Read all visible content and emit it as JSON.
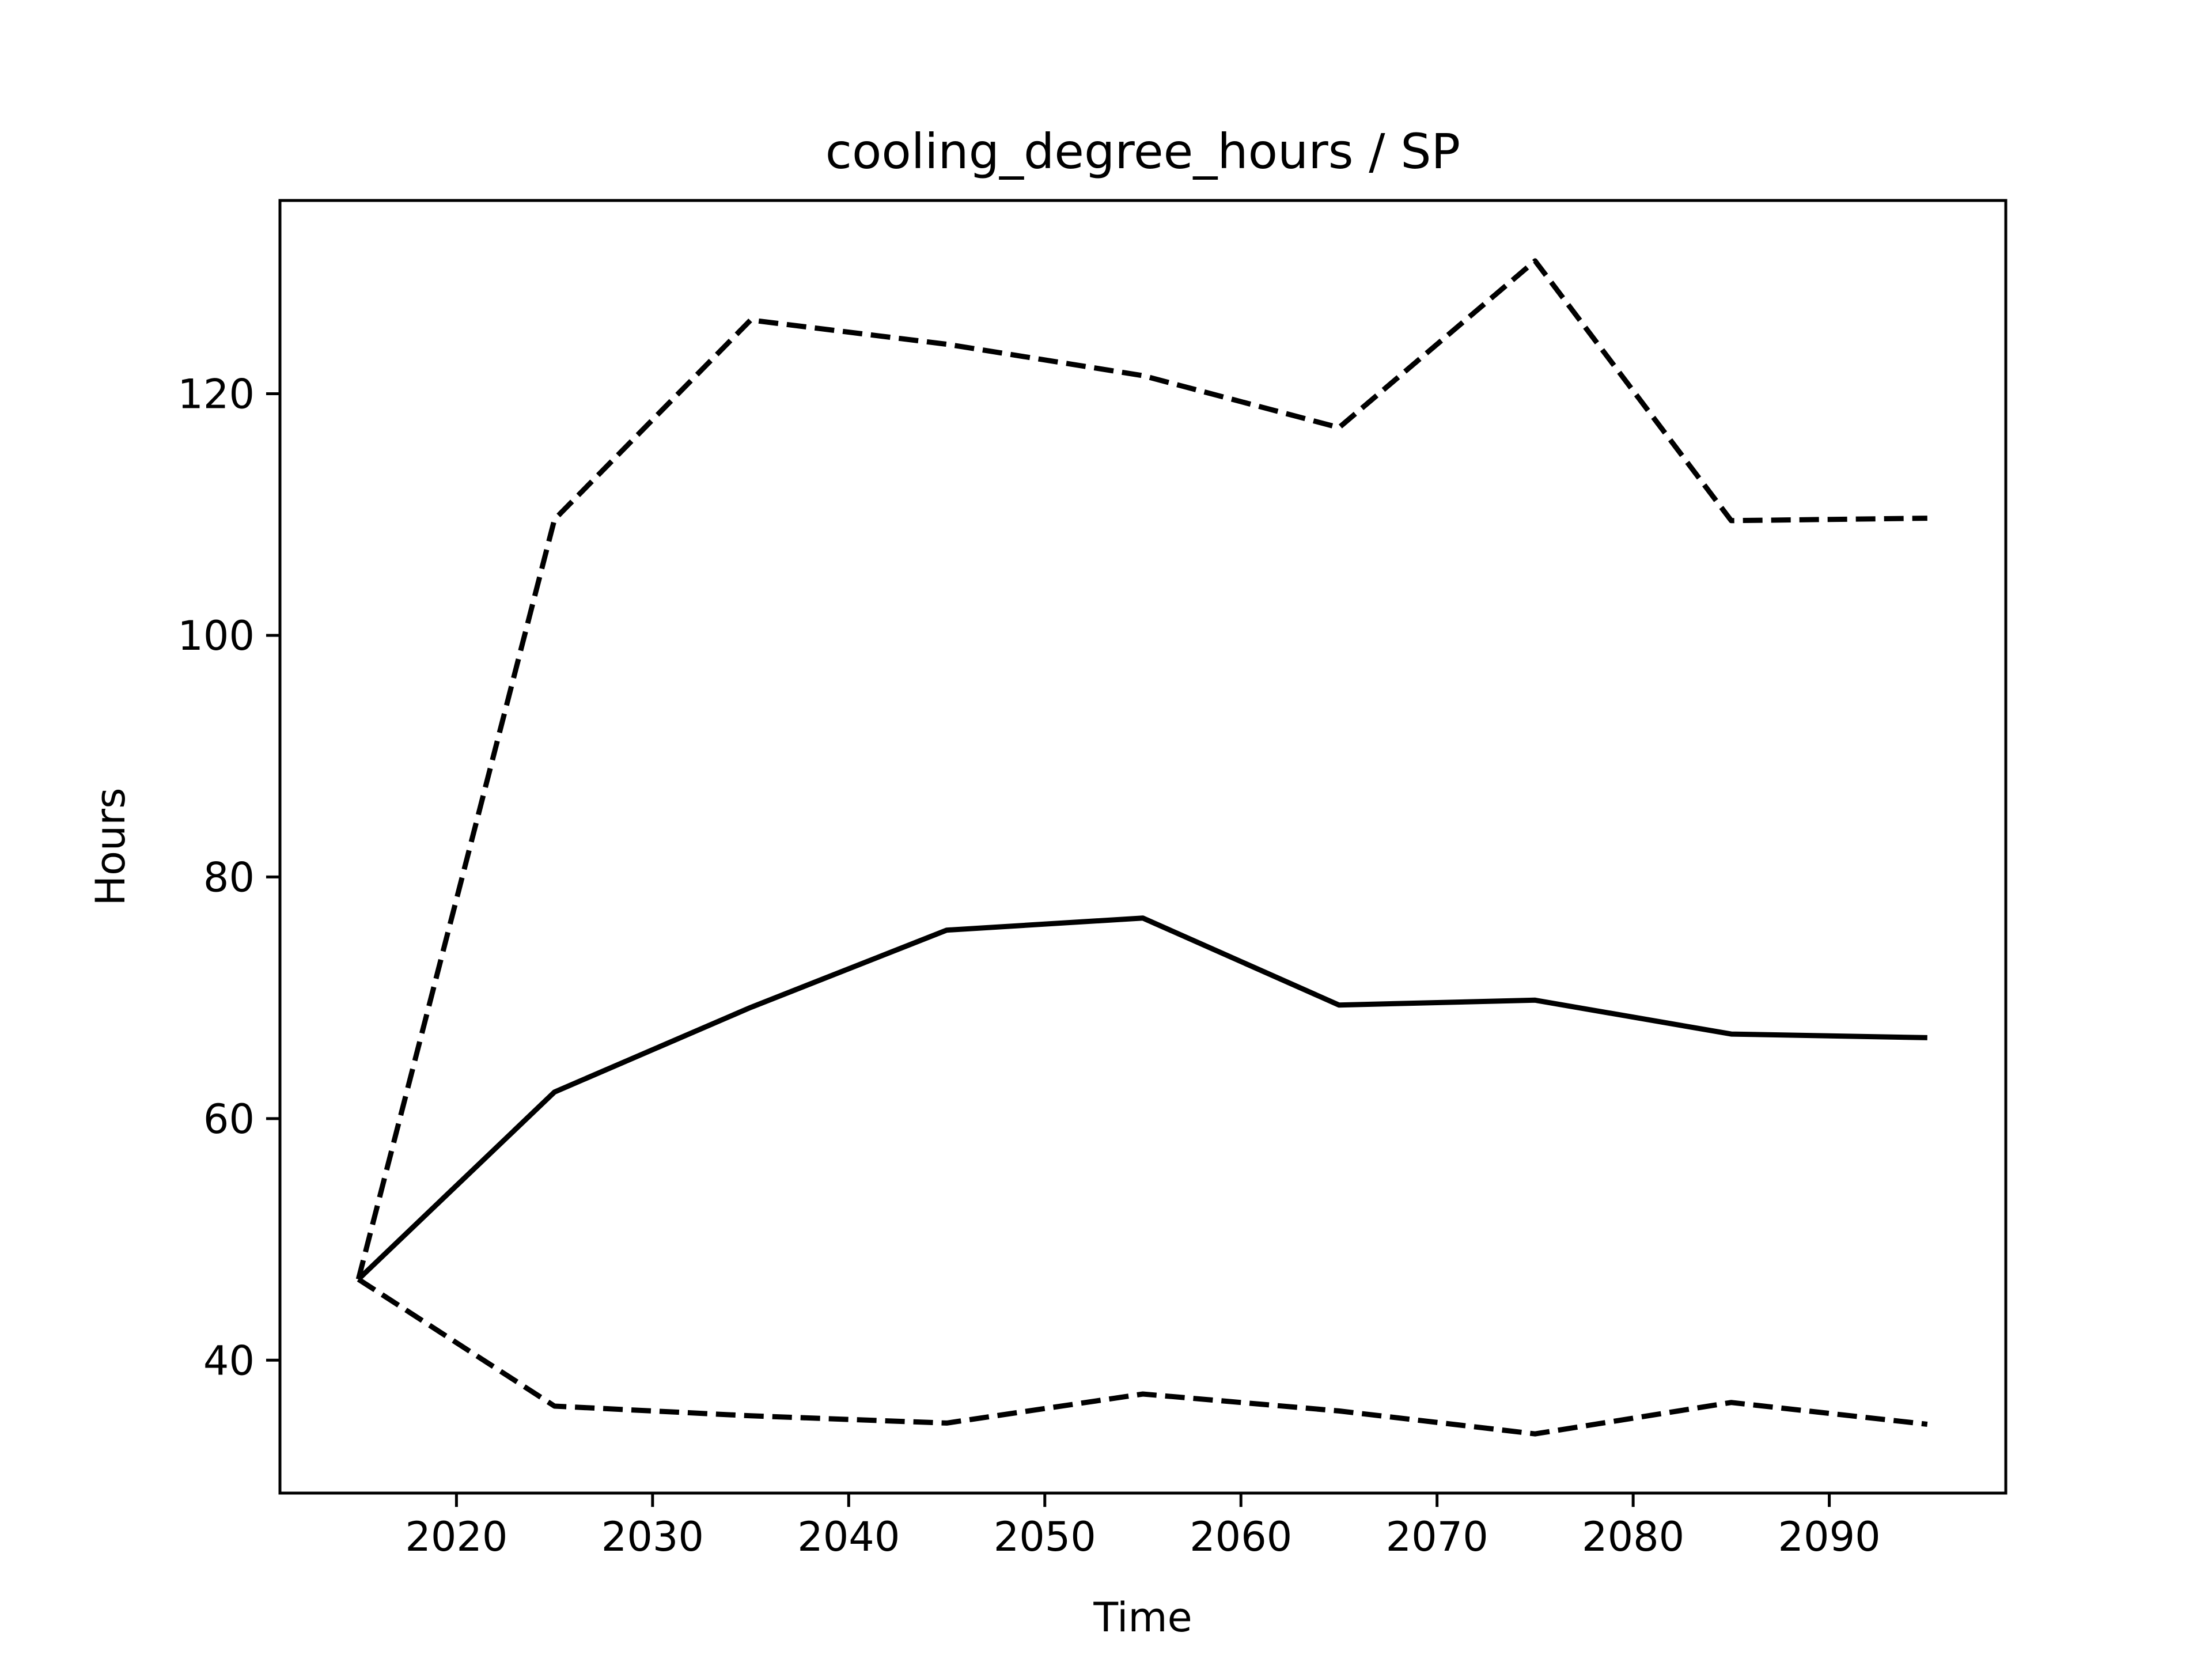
{
  "chart_data": {
    "type": "line",
    "title": "cooling_degree_hours / SP",
    "xlabel": "Time",
    "ylabel": "Hours",
    "xlim": [
      2011,
      2099
    ],
    "ylim": [
      29,
      136
    ],
    "x_ticks": [
      2020,
      2030,
      2040,
      2050,
      2060,
      2070,
      2080,
      2090
    ],
    "y_ticks": [
      40,
      60,
      80,
      100,
      120
    ],
    "grid": false,
    "legend": "none",
    "colors": {
      "line": "#000000"
    },
    "x": [
      2015,
      2025,
      2035,
      2045,
      2055,
      2065,
      2075,
      2085,
      2095
    ],
    "series": [
      {
        "style": "solid",
        "values": [
          46.7,
          62.2,
          69.2,
          75.6,
          76.6,
          69.4,
          69.8,
          67.0,
          66.7
        ]
      },
      {
        "style": "dashed",
        "values": [
          46.7,
          109.6,
          126.1,
          124.1,
          121.5,
          117.2,
          131.0,
          109.5,
          109.7
        ]
      },
      {
        "style": "dashed",
        "values": [
          46.7,
          36.2,
          35.4,
          34.8,
          37.2,
          35.8,
          33.9,
          36.5,
          34.7
        ]
      }
    ]
  }
}
